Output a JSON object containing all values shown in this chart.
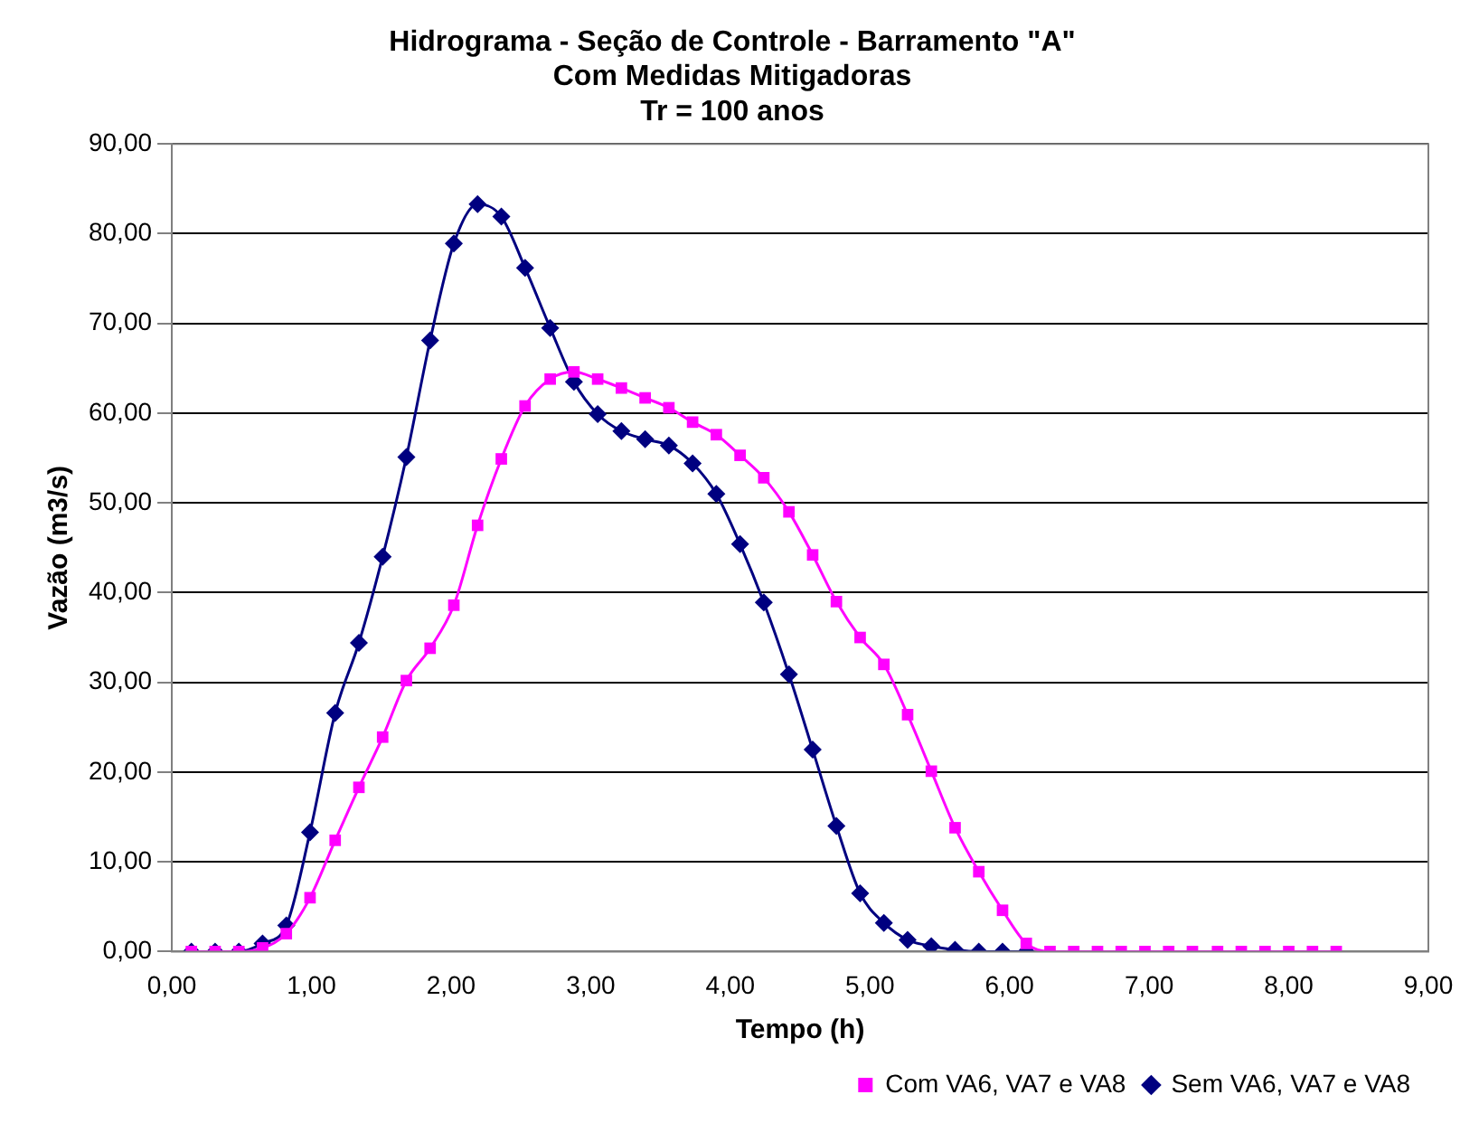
{
  "chart_data": {
    "type": "line",
    "title": "Hidrograma - Seção de Controle - Barramento \"A\"",
    "subtitle": [
      "Com Medidas Mitigadoras",
      "Tr = 100 anos"
    ],
    "xlabel": "Tempo (h)",
    "ylabel": "Vazão (m3/s)",
    "x": [
      0.14,
      0.31,
      0.48,
      0.65,
      0.82,
      0.99,
      1.17,
      1.34,
      1.51,
      1.68,
      1.85,
      2.02,
      2.19,
      2.36,
      2.53,
      2.71,
      2.88,
      3.05,
      3.22,
      3.39,
      3.56,
      3.73,
      3.9,
      4.07,
      4.24,
      4.42,
      4.59,
      4.76,
      4.93,
      5.1,
      5.27,
      5.44,
      5.61,
      5.78,
      5.95,
      6.12,
      6.29,
      6.46,
      6.63,
      6.8,
      6.97,
      7.14,
      7.31,
      7.49,
      7.66,
      7.83,
      8.0,
      8.17,
      8.34
    ],
    "series": [
      {
        "name": "Sem VA6, VA7 e VA8",
        "color": "#000080",
        "marker": "diamond",
        "x": [
          0.14,
          0.31,
          0.48,
          0.65,
          0.82,
          0.99,
          1.17,
          1.34,
          1.51,
          1.68,
          1.85,
          2.02,
          2.19,
          2.36,
          2.53,
          2.71,
          2.88,
          3.05,
          3.22,
          3.39,
          3.56,
          3.73,
          3.9,
          4.07,
          4.24,
          4.42,
          4.59,
          4.76,
          4.93,
          5.1,
          5.27,
          5.44,
          5.61,
          5.78,
          5.95,
          6.12
        ],
        "values": [
          0,
          0,
          0,
          0.9,
          2.9,
          13.3,
          26.6,
          34.4,
          44.0,
          55.1,
          68.1,
          78.9,
          83.3,
          81.9,
          76.2,
          69.5,
          63.5,
          59.9,
          58.0,
          57.1,
          56.4,
          54.4,
          51.0,
          45.4,
          38.9,
          30.9,
          22.5,
          14.0,
          6.5,
          3.2,
          1.3,
          0.6,
          0.2,
          0,
          0,
          0
        ]
      },
      {
        "name": "Com VA6, VA7 e VA8",
        "color": "#ff00ff",
        "marker": "square",
        "values": [
          0,
          0,
          0,
          0.4,
          2.0,
          6.0,
          12.4,
          18.3,
          23.9,
          30.2,
          33.8,
          38.6,
          47.5,
          54.9,
          60.8,
          63.8,
          64.6,
          63.8,
          62.8,
          61.7,
          60.6,
          59.0,
          57.6,
          55.3,
          52.8,
          49.0,
          44.2,
          39.0,
          35.0,
          32.0,
          26.4,
          20.1,
          13.8,
          8.9,
          4.6,
          0.9,
          0,
          0,
          0,
          0,
          0,
          0,
          0,
          0,
          0,
          0,
          0,
          0,
          0
        ]
      }
    ],
    "xlim": [
      0,
      9
    ],
    "xticks": [
      {
        "value": 0,
        "label": "0,00"
      },
      {
        "value": 1,
        "label": "1,00"
      },
      {
        "value": 2,
        "label": "2,00"
      },
      {
        "value": 3,
        "label": "3,00"
      },
      {
        "value": 4,
        "label": "4,00"
      },
      {
        "value": 5,
        "label": "5,00"
      },
      {
        "value": 6,
        "label": "6,00"
      },
      {
        "value": 7,
        "label": "7,00"
      },
      {
        "value": 8,
        "label": "8,00"
      },
      {
        "value": 9,
        "label": "9,00"
      }
    ],
    "ylim": [
      0,
      90
    ],
    "yticks": [
      {
        "value": 0,
        "label": "0,00"
      },
      {
        "value": 10,
        "label": "10,00"
      },
      {
        "value": 20,
        "label": "20,00"
      },
      {
        "value": 30,
        "label": "30,00"
      },
      {
        "value": 40,
        "label": "40,00"
      },
      {
        "value": 50,
        "label": "50,00"
      },
      {
        "value": 60,
        "label": "60,00"
      },
      {
        "value": 70,
        "label": "70,00"
      },
      {
        "value": 80,
        "label": "80,00"
      },
      {
        "value": 90,
        "label": "90,00"
      }
    ],
    "grid": "y",
    "legend": "bottom right",
    "line_style": "solid"
  }
}
